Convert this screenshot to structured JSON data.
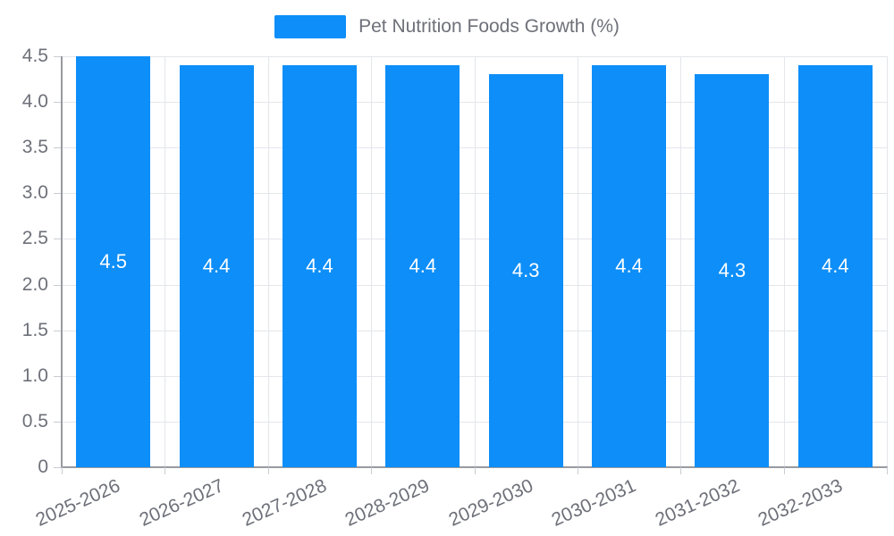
{
  "legend": {
    "label": "Pet Nutrition Foods Growth (%)"
  },
  "chart_data": {
    "type": "bar",
    "title": "",
    "xlabel": "",
    "ylabel": "",
    "categories": [
      "2025-2026",
      "2026-2027",
      "2027-2028",
      "2028-2029",
      "2029-2030",
      "2030-2031",
      "2031-2032",
      "2032-2033"
    ],
    "series": [
      {
        "name": "Pet Nutrition Foods Growth (%)",
        "values": [
          4.5,
          4.4,
          4.4,
          4.4,
          4.3,
          4.4,
          4.3,
          4.4
        ],
        "value_labels": [
          "4.5",
          "4.4",
          "4.4",
          "4.4",
          "4.3",
          "4.4",
          "4.3",
          "4.4"
        ]
      }
    ],
    "ylim": [
      0,
      4.5
    ],
    "yticks": {
      "values": [
        0,
        0.5,
        1.0,
        1.5,
        2.0,
        2.5,
        3.0,
        3.5,
        4.0,
        4.5
      ],
      "labels": [
        "0",
        "0.5",
        "1.0",
        "1.5",
        "2.0",
        "2.5",
        "3.0",
        "3.5",
        "4.0",
        "4.5"
      ]
    },
    "x_label_rotation_deg": -24,
    "grid": true,
    "legend_position": "top-center"
  },
  "colors": {
    "bar": "#0d8ef8",
    "bar_label": "#ffffff",
    "grid": "#e4e6eb",
    "axis": "#979aa0",
    "tick": "#c9ccd2",
    "text": "#6e7079",
    "background": "#ffffff"
  }
}
